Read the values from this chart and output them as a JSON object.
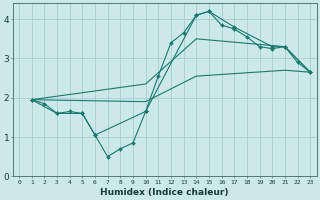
{
  "title": "",
  "xlabel": "Humidex (Indice chaleur)",
  "bg_color": "#cce8ea",
  "grid_color": "#aacdd0",
  "line_color": "#1a7a6e",
  "xlim": [
    -0.5,
    23.5
  ],
  "ylim": [
    0,
    4.4
  ],
  "xticks": [
    0,
    1,
    2,
    3,
    4,
    5,
    6,
    7,
    8,
    9,
    10,
    11,
    12,
    13,
    14,
    15,
    16,
    17,
    18,
    19,
    20,
    21,
    22,
    23
  ],
  "yticks": [
    0,
    1,
    2,
    3,
    4
  ],
  "lines": [
    {
      "x": [
        1,
        2,
        3,
        4,
        5,
        6,
        7,
        8,
        9,
        10,
        11,
        12,
        13,
        14,
        15,
        16,
        17,
        18,
        19,
        20,
        21,
        22,
        23
      ],
      "y": [
        1.95,
        1.85,
        1.6,
        1.65,
        1.6,
        1.05,
        0.5,
        0.7,
        0.85,
        1.65,
        2.55,
        3.4,
        3.65,
        4.1,
        4.2,
        3.85,
        3.75,
        3.55,
        3.3,
        3.25,
        3.3,
        2.9,
        2.65
      ],
      "marker": true
    },
    {
      "x": [
        1,
        3,
        5,
        6,
        10,
        14,
        15,
        17,
        20,
        21,
        23
      ],
      "y": [
        1.95,
        1.6,
        1.6,
        1.05,
        1.65,
        4.1,
        4.2,
        3.8,
        3.3,
        3.3,
        2.65
      ],
      "marker": true
    },
    {
      "x": [
        1,
        10,
        14,
        21,
        23
      ],
      "y": [
        1.95,
        2.35,
        3.5,
        3.3,
        2.65
      ],
      "marker": false
    },
    {
      "x": [
        1,
        10,
        14,
        21,
        23
      ],
      "y": [
        1.95,
        1.9,
        2.55,
        2.7,
        2.65
      ],
      "marker": false
    }
  ]
}
